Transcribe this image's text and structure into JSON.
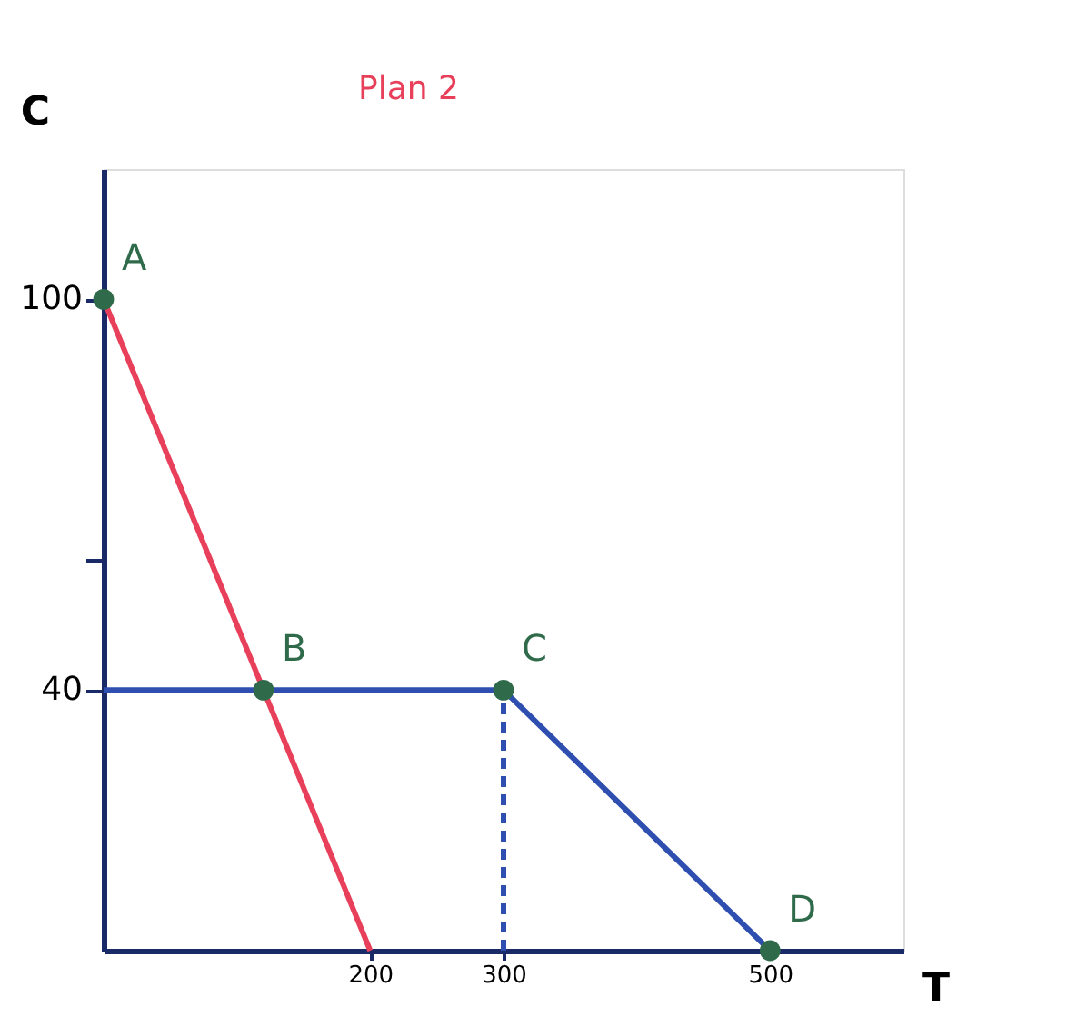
{
  "chart_data": {
    "type": "line",
    "xlabel": "T",
    "ylabel": "C",
    "xlim": [
      0,
      600
    ],
    "ylim": [
      0,
      120
    ],
    "xticks": [
      200,
      300,
      500
    ],
    "yticks": [
      40,
      {
        "value": 60,
        "label": null
      },
      100
    ],
    "grid": false,
    "line_style": "solid",
    "series": [
      {
        "name": "Plan 2",
        "color": "#e8405a",
        "x": [
          0,
          200
        ],
        "values": [
          100,
          0
        ]
      },
      {
        "color": "#2e4fb0",
        "x": [
          0,
          300,
          500
        ],
        "values": [
          40,
          40,
          0
        ]
      },
      {
        "color": "#2e4fb0",
        "x": [
          300,
          300
        ],
        "values": [
          0,
          40
        ],
        "line_style": "dashed"
      },
      {
        "type": "scatter",
        "marker": "circle",
        "color": "#2f6b4a",
        "x": [
          0,
          120,
          300,
          500
        ],
        "values": [
          100,
          40,
          40,
          0
        ]
      }
    ],
    "annotations": [
      {
        "text": "A",
        "x": 0,
        "y": 100
      },
      {
        "text": "B",
        "x": 120,
        "y": 40
      },
      {
        "text": "C",
        "x": 300,
        "y": 40
      },
      {
        "text": "D",
        "x": 500,
        "y": 0
      }
    ]
  }
}
